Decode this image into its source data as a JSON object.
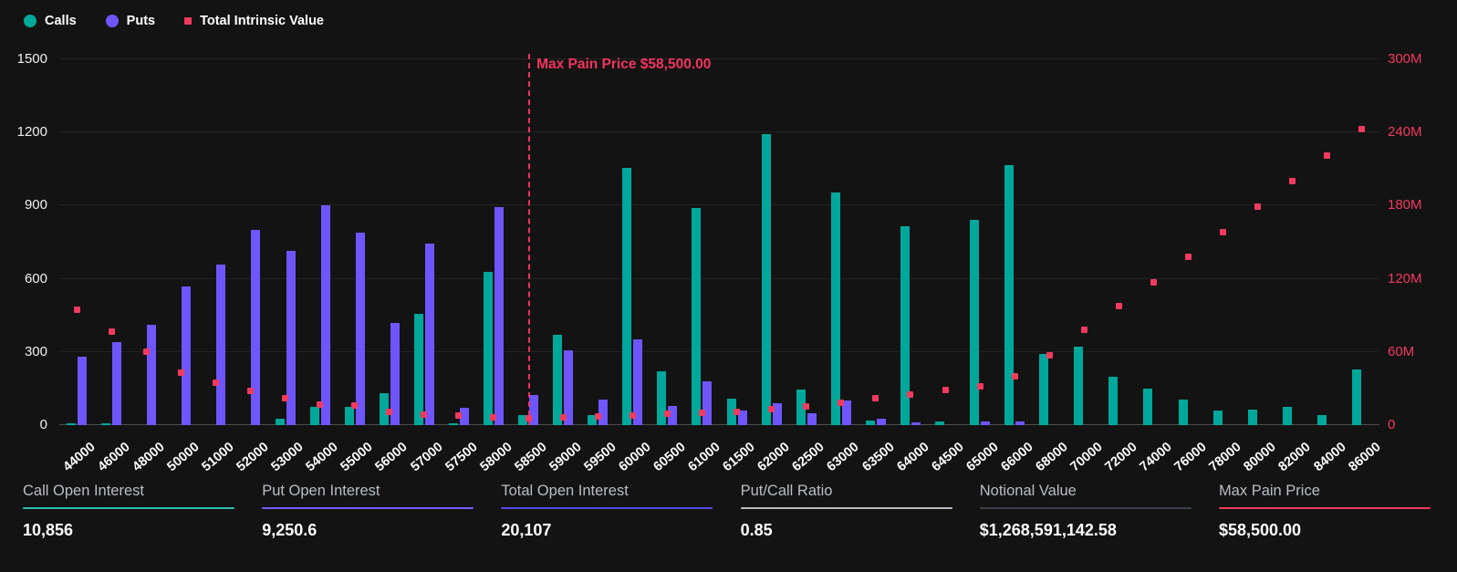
{
  "legend": {
    "items": [
      {
        "label": "Calls",
        "color": "#00a89b",
        "shape": "circle"
      },
      {
        "label": "Puts",
        "color": "#6e56fc",
        "shape": "circle"
      },
      {
        "label": "Total Intrinsic Value",
        "color": "#f23a5e",
        "shape": "square"
      }
    ]
  },
  "chart_data": {
    "type": "bar",
    "title": "",
    "xlabel": "Strike Price",
    "categories": [
      "44000",
      "46000",
      "48000",
      "50000",
      "51000",
      "52000",
      "53000",
      "54000",
      "55000",
      "56000",
      "57000",
      "57500",
      "58000",
      "58500",
      "59000",
      "59500",
      "60000",
      "60500",
      "61000",
      "61500",
      "62000",
      "62500",
      "63000",
      "63500",
      "64000",
      "64500",
      "65000",
      "66000",
      "68000",
      "70000",
      "72000",
      "74000",
      "76000",
      "78000",
      "80000",
      "82000",
      "84000",
      "86000"
    ],
    "series": [
      {
        "name": "Calls",
        "type": "bar",
        "axis": "left",
        "color": "#00a89b",
        "values": [
          3,
          8,
          0,
          0,
          0,
          0,
          25,
          75,
          75,
          130,
          455,
          8,
          630,
          40,
          370,
          42,
          1055,
          220,
          890,
          110,
          1195,
          145,
          955,
          20,
          815,
          15,
          840,
          1065,
          290,
          320,
          200,
          150,
          105,
          60,
          65,
          75,
          40,
          230
        ]
      },
      {
        "name": "Puts",
        "type": "bar",
        "axis": "left",
        "color": "#6e56fc",
        "values": [
          280,
          340,
          410,
          570,
          660,
          800,
          715,
          900,
          790,
          420,
          745,
          70,
          895,
          125,
          305,
          105,
          350,
          80,
          180,
          60,
          90,
          50,
          100,
          25,
          10,
          0,
          15,
          15,
          0,
          0,
          0,
          0,
          0,
          0,
          0,
          0,
          0,
          0
        ]
      },
      {
        "name": "Total Intrinsic Value",
        "type": "scatter",
        "axis": "right",
        "color": "#f23a5e",
        "values_millions": [
          95,
          77,
          60,
          43,
          35,
          28,
          22,
          17,
          16,
          11,
          8.5,
          8,
          6.5,
          5.5,
          6,
          7,
          8,
          9,
          10,
          11,
          13,
          15,
          18,
          22,
          25,
          29,
          32,
          40,
          57,
          78,
          98,
          117,
          138,
          158,
          179,
          200,
          221,
          243
        ]
      }
    ],
    "left_axis": {
      "min": 0,
      "max": 1500,
      "ticks": [
        0,
        300,
        600,
        900,
        1200,
        1500
      ],
      "grid": true
    },
    "right_axis": {
      "min_millions": 0,
      "max_millions": 300,
      "tick_labels": [
        "0",
        "60M",
        "120M",
        "180M",
        "240M",
        "300M"
      ]
    },
    "legend_position": "top-left",
    "annotation": {
      "label": "Max Pain Price $58,500.00",
      "category": "58500",
      "color": "#f23a5e",
      "style": "dashed-vertical-line"
    }
  },
  "stats": [
    {
      "label": "Call Open Interest",
      "value": "10,856",
      "accent": "#2dbfb0"
    },
    {
      "label": "Put Open Interest",
      "value": "9,250.6",
      "accent": "#7c5cff"
    },
    {
      "label": "Total Open Interest",
      "value": "20,107",
      "accent": "#5948e0"
    },
    {
      "label": "Put/Call Ratio",
      "value": "0.85",
      "accent": "#b9bdc2"
    },
    {
      "label": "Notional Value",
      "value": "$1,268,591,142.58",
      "accent": "#3c4046"
    },
    {
      "label": "Max Pain Price",
      "value": "$58,500.00",
      "accent": "#f23a5e"
    }
  ]
}
